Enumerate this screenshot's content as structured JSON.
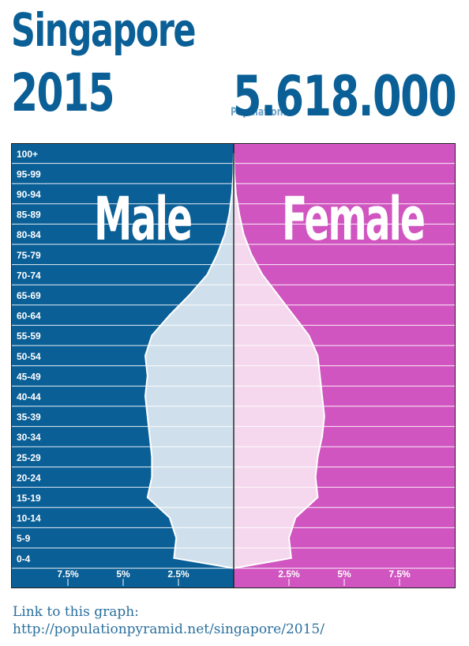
{
  "header": {
    "country": "Singapore",
    "year": "2015",
    "population_label": "Population:",
    "population_value": "5.618.000"
  },
  "footer": {
    "line1": "Link to this graph:",
    "line2": "http://populationpyramid.net/singapore/2015/"
  },
  "colors": {
    "male_bg": "#0a5f96",
    "female_bg": "#d155c0",
    "male_fill": "#cfe0ec",
    "female_fill": "#f5d8ee"
  },
  "chart_data": {
    "type": "bar",
    "subtype": "population-pyramid",
    "categories": [
      "0-4",
      "5-9",
      "10-14",
      "15-19",
      "20-24",
      "25-29",
      "30-34",
      "35-39",
      "40-44",
      "45-49",
      "50-54",
      "55-59",
      "60-64",
      "65-69",
      "70-74",
      "75-79",
      "80-84",
      "85-89",
      "90-94",
      "95-99",
      "100+"
    ],
    "series": [
      {
        "name": "Male",
        "values": [
          2.7,
          2.6,
          2.9,
          3.9,
          3.7,
          3.7,
          3.8,
          3.9,
          4.0,
          3.9,
          4.0,
          3.7,
          2.9,
          2.0,
          1.2,
          0.75,
          0.4,
          0.2,
          0.08,
          0.02,
          0.0
        ]
      },
      {
        "name": "Female",
        "values": [
          2.6,
          2.5,
          2.8,
          3.8,
          3.7,
          3.8,
          4.0,
          4.1,
          4.0,
          3.9,
          3.8,
          3.4,
          2.7,
          2.0,
          1.3,
          0.8,
          0.45,
          0.25,
          0.1,
          0.03,
          0.0
        ]
      }
    ],
    "xticks": [
      "7.5%",
      "5%",
      "2.5%",
      "2.5%",
      "5%",
      "7.5%"
    ],
    "xlim": [
      0,
      10
    ],
    "grid": true
  }
}
